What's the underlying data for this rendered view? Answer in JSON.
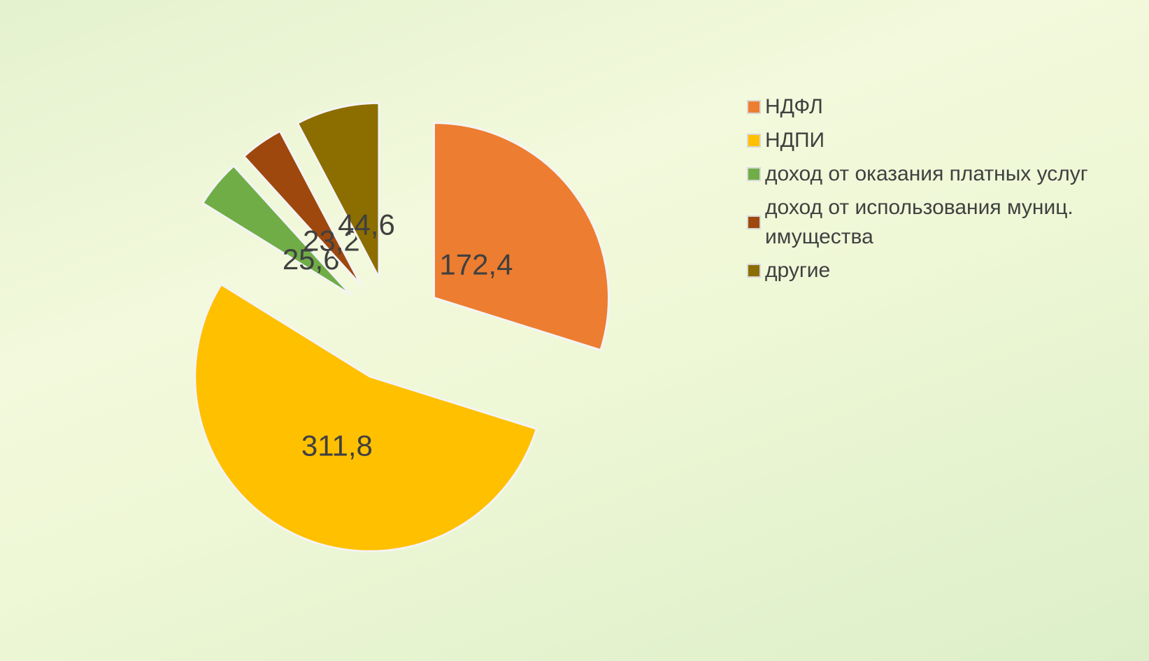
{
  "chart_data": {
    "type": "pie",
    "categories": [
      "НДФЛ",
      "НДПИ",
      "доход от оказания платных услуг",
      "доход от использования муниц. имущества",
      "другие"
    ],
    "values": [
      172.4,
      311.8,
      25.6,
      23.2,
      44.6
    ],
    "value_labels": [
      "172,4",
      "311,8",
      "25,6",
      "23,2",
      "44,6"
    ],
    "colors": [
      "#ed7d31",
      "#ffc000",
      "#70ad47",
      "#9e480e",
      "#8c6d00"
    ],
    "exploded": true,
    "legend": "right"
  }
}
